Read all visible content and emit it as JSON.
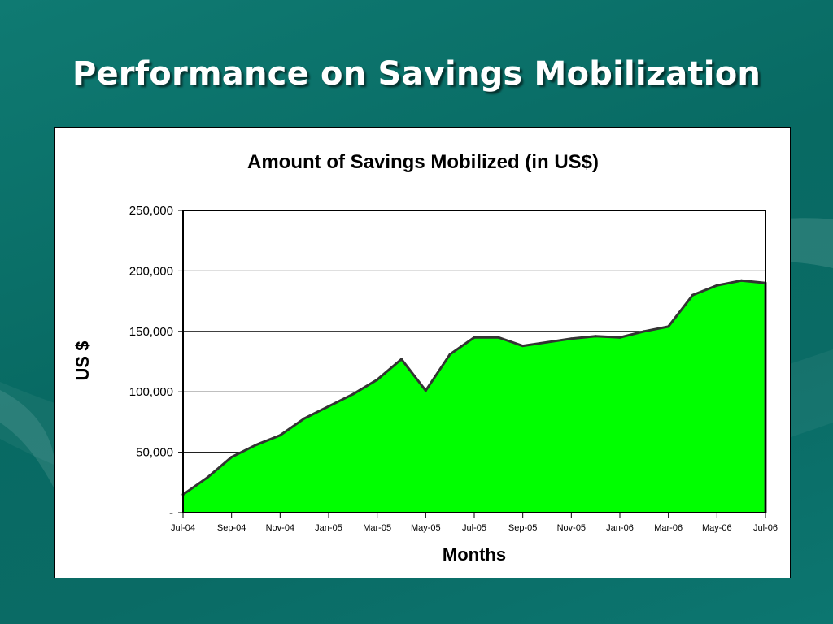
{
  "slide": {
    "title": "Performance on Savings Mobilization"
  },
  "colors": {
    "background": "#0b6e67",
    "area_fill": "#00ff00",
    "area_line": "#333333",
    "title_text": "#ffffff"
  },
  "chart_data": {
    "type": "area",
    "title": "Amount of Savings Mobilized (in US$)",
    "xlabel": "Months",
    "ylabel": "US $",
    "ylim": [
      0,
      250000
    ],
    "y_ticks": [
      0,
      50000,
      100000,
      150000,
      200000,
      250000
    ],
    "y_tick_labels": [
      "-",
      "50,000",
      "100,000",
      "150,000",
      "200,000",
      "250,000"
    ],
    "x_tick_labels": [
      "Jul-04",
      "Sep-04",
      "Nov-04",
      "Jan-05",
      "Mar-05",
      "May-05",
      "Jul-05",
      "Sep-05",
      "Nov-05",
      "Jan-06",
      "Mar-06",
      "May-06",
      "Jul-06"
    ],
    "grid": "horizontal",
    "legend": "none",
    "series": [
      {
        "x": [
          "Jul-04",
          "Aug-04",
          "Sep-04",
          "Oct-04",
          "Nov-04",
          "Dec-04",
          "Jan-05",
          "Feb-05",
          "Mar-05",
          "Apr-05",
          "May-05",
          "Jun-05",
          "Jul-05",
          "Aug-05",
          "Sep-05",
          "Oct-05",
          "Nov-05",
          "Dec-05",
          "Jan-06",
          "Feb-06",
          "Mar-06",
          "Apr-06",
          "May-06",
          "Jun-06",
          "Jul-06"
        ],
        "values": [
          15000,
          29000,
          46000,
          56000,
          64000,
          78000,
          88000,
          98000,
          110000,
          127000,
          101000,
          131000,
          145000,
          145000,
          138000,
          141000,
          144000,
          146000,
          145000,
          150000,
          154000,
          180000,
          188000,
          192000,
          190000
        ]
      }
    ]
  }
}
